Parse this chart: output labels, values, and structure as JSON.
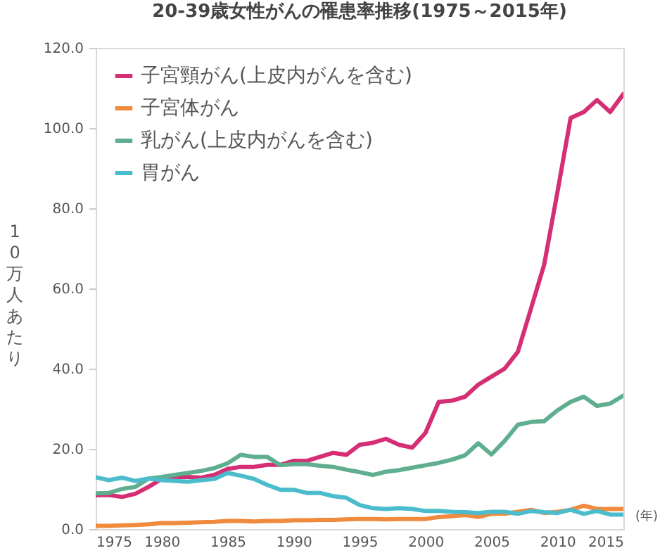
{
  "chart_data": {
    "type": "line",
    "title": "20-39歳女性がんの罹患率推移(1975～2015年)",
    "xlabel": "(年)",
    "ylabel": "10万人あたり",
    "x": [
      1975,
      1976,
      1977,
      1978,
      1979,
      1980,
      1981,
      1982,
      1983,
      1984,
      1985,
      1986,
      1987,
      1988,
      1989,
      1990,
      1991,
      1992,
      1993,
      1994,
      1995,
      1996,
      1997,
      1998,
      1999,
      2000,
      2001,
      2002,
      2003,
      2004,
      2005,
      2006,
      2007,
      2008,
      2009,
      2010,
      2011,
      2012,
      2013,
      2014,
      2015
    ],
    "series": [
      {
        "name": "子宮頸がん(上皮内がんを含む)",
        "color": "#d62e74",
        "values": [
          8.4,
          8.5,
          8.0,
          8.8,
          10.5,
          12.5,
          13.0,
          13.0,
          12.8,
          13.5,
          15.0,
          15.5,
          15.5,
          16.0,
          16.0,
          17.0,
          17.0,
          18.0,
          19.0,
          18.5,
          21.0,
          21.5,
          22.5,
          21.0,
          20.3,
          24.0,
          31.7,
          32.0,
          33.0,
          36.0,
          38.0,
          40.0,
          44.2,
          55.0,
          66.0,
          84.0,
          102.5,
          104.0,
          107.0,
          104.0,
          108.5
        ]
      },
      {
        "name": "子宮体がん",
        "color": "#f08a3c",
        "values": [
          0.8,
          0.8,
          0.9,
          1.0,
          1.2,
          1.5,
          1.5,
          1.6,
          1.7,
          1.8,
          2.0,
          2.0,
          1.9,
          2.0,
          2.0,
          2.2,
          2.2,
          2.3,
          2.3,
          2.4,
          2.5,
          2.5,
          2.4,
          2.5,
          2.5,
          2.5,
          3.0,
          3.2,
          3.5,
          3.0,
          3.8,
          3.8,
          4.3,
          4.8,
          4.0,
          4.3,
          4.8,
          5.8,
          5.0,
          5.0,
          5.0
        ]
      },
      {
        "name": "乳がん(上皮内がんを含む)",
        "color": "#5fae8f",
        "values": [
          8.9,
          9.0,
          10.0,
          10.5,
          12.6,
          13.0,
          13.5,
          14.0,
          14.5,
          15.2,
          16.4,
          18.5,
          18.0,
          18.0,
          15.9,
          16.2,
          16.2,
          15.8,
          15.5,
          14.8,
          14.2,
          13.5,
          14.3,
          14.7,
          15.3,
          15.9,
          16.5,
          17.3,
          18.4,
          21.4,
          18.6,
          22.0,
          26.0,
          26.7,
          26.9,
          29.6,
          31.7,
          33.0,
          30.7,
          31.3,
          33.3
        ]
      },
      {
        "name": "胃がん",
        "color": "#4bbccc",
        "values": [
          12.9,
          12.2,
          12.8,
          12.0,
          12.6,
          12.2,
          12.0,
          11.8,
          12.2,
          12.5,
          14.0,
          13.3,
          12.5,
          11.0,
          9.8,
          9.8,
          9.0,
          9.0,
          8.2,
          7.8,
          6.0,
          5.2,
          5.0,
          5.2,
          5.0,
          4.5,
          4.5,
          4.3,
          4.2,
          4.0,
          4.3,
          4.3,
          3.8,
          4.5,
          4.2,
          4.0,
          4.8,
          3.8,
          4.5,
          3.6,
          3.6
        ]
      }
    ],
    "xlim": [
      1975,
      2015
    ],
    "xticks": [
      1975,
      1980,
      1985,
      1990,
      1995,
      2000,
      2005,
      2010,
      2015
    ],
    "ylim": [
      0,
      120
    ],
    "yticks": [
      {
        "value": 0,
        "label": "0.0"
      },
      {
        "value": 20,
        "label": "20.0"
      },
      {
        "value": 40,
        "label": "40.0"
      },
      {
        "value": 60,
        "label": "60.0"
      },
      {
        "value": 80,
        "label": "80.0"
      },
      {
        "value": 100,
        "label": "100.0"
      },
      {
        "value": 120,
        "label": "120.0"
      }
    ],
    "grid": false,
    "legend": "top left",
    "marker": "none",
    "line_style": "solid"
  }
}
